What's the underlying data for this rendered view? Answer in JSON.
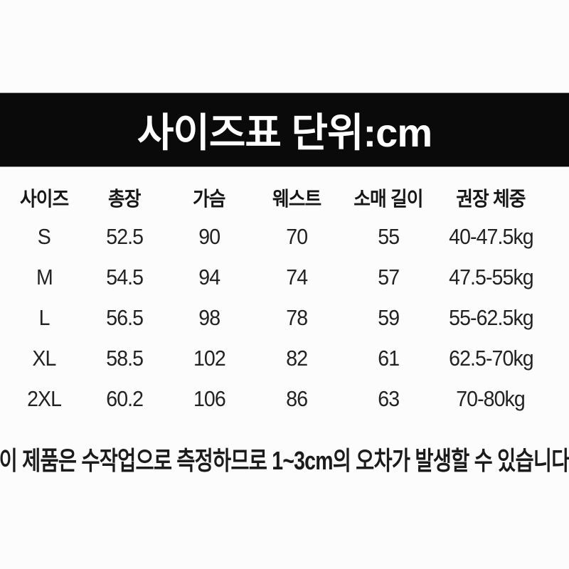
{
  "colors": {
    "background": "#fcfcfc",
    "banner_bg": "#0a0a0a",
    "banner_text": "#ffffff",
    "text": "#1e1e1e"
  },
  "banner": {
    "title": "사이즈표 단위:cm"
  },
  "chart_data": {
    "type": "table",
    "title": "사이즈표 단위:cm",
    "unit": "cm",
    "columns": [
      "사이즈",
      "총장",
      "가슴",
      "웨스트",
      "소매 길이",
      "권장 체중"
    ],
    "rows": [
      [
        "S",
        "52.5",
        "90",
        "70",
        "55",
        "40-47.5kg"
      ],
      [
        "M",
        "54.5",
        "94",
        "74",
        "57",
        "47.5-55kg"
      ],
      [
        "L",
        "56.5",
        "98",
        "78",
        "59",
        "55-62.5kg"
      ],
      [
        "XL",
        "58.5",
        "102",
        "82",
        "61",
        "62.5-70kg"
      ],
      [
        "2XL",
        "60.2",
        "106",
        "86",
        "63",
        "70-80kg"
      ]
    ],
    "note": "이 제품은 수작업으로 측정하므로 1~3cm의 오차가 발생할 수 있습니다"
  }
}
